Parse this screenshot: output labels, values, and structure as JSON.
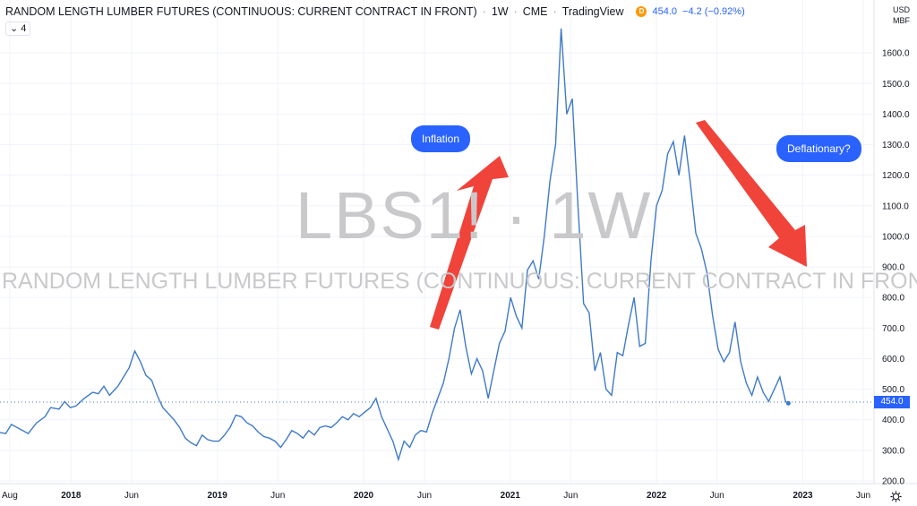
{
  "header": {
    "title": "RANDOM LENGTH LUMBER FUTURES (CONTINUOUS: CURRENT CONTRACT IN FRONT)",
    "interval": "1W",
    "exchange": "CME",
    "source": "TradingView",
    "delayed_badge": "D",
    "last_price": "454.0",
    "change": "−4.2 (−0.92%)"
  },
  "indicator_toggle": "⌄ 4",
  "currency": "USD",
  "unit": "MBF",
  "watermark": {
    "symbol": "LBS1! · 1W",
    "description": "RANDOM LENGTH LUMBER FUTURES (CONTINUOUS: CURRENT CONTRACT IN FRONT)"
  },
  "annotations": {
    "inflation": "Inflation",
    "deflationary": "Deflationary?"
  },
  "price_badge": "454.0",
  "settings_icon": "gear-icon",
  "colors": {
    "line": "#3f7ac9",
    "accent": "#2962ff",
    "arrow": "#f0433a"
  },
  "chart_data": {
    "type": "line",
    "title": "RANDOM LENGTH LUMBER FUTURES (CONTINUOUS: CURRENT CONTRACT IN FRONT)",
    "ylim": [
      200,
      1700
    ],
    "y_ticks": [
      "200.0",
      "300.0",
      "400.0",
      "500.0",
      "600.0",
      "700.0",
      "800.0",
      "900.0",
      "1000.0",
      "1100.0",
      "1200.0",
      "1300.0",
      "1400.0",
      "1500.0",
      "1600.0"
    ],
    "xlim": [
      "2017-07-01",
      "2023-06-30"
    ],
    "x_ticks": [
      {
        "label": "Aug",
        "date": "2017-08-01"
      },
      {
        "label": "2018",
        "date": "2018-01-01"
      },
      {
        "label": "Jun",
        "date": "2018-06-01"
      },
      {
        "label": "2019",
        "date": "2019-01-01"
      },
      {
        "label": "Jun",
        "date": "2019-06-01"
      },
      {
        "label": "2020",
        "date": "2020-01-01"
      },
      {
        "label": "Jun",
        "date": "2020-06-01"
      },
      {
        "label": "2021",
        "date": "2021-01-01"
      },
      {
        "label": "Jun",
        "date": "2021-06-01"
      },
      {
        "label": "2022",
        "date": "2022-01-01"
      },
      {
        "label": "Jun",
        "date": "2022-06-01"
      },
      {
        "label": "2023",
        "date": "2023-01-01"
      },
      {
        "label": "Jun",
        "date": "2023-06-01"
      }
    ],
    "last_value": 454.0,
    "series": [
      {
        "points": [
          [
            "2017-07-01",
            360
          ],
          [
            "2017-07-22",
            355
          ],
          [
            "2017-08-05",
            385
          ],
          [
            "2017-08-26",
            370
          ],
          [
            "2017-09-16",
            355
          ],
          [
            "2017-10-07",
            390
          ],
          [
            "2017-10-28",
            410
          ],
          [
            "2017-11-11",
            440
          ],
          [
            "2017-12-02",
            435
          ],
          [
            "2017-12-16",
            460
          ],
          [
            "2017-12-30",
            440
          ],
          [
            "2018-01-13",
            445
          ],
          [
            "2018-02-03",
            470
          ],
          [
            "2018-02-24",
            490
          ],
          [
            "2018-03-10",
            485
          ],
          [
            "2018-03-24",
            510
          ],
          [
            "2018-04-07",
            480
          ],
          [
            "2018-04-28",
            510
          ],
          [
            "2018-05-12",
            540
          ],
          [
            "2018-05-26",
            570
          ],
          [
            "2018-06-09",
            625
          ],
          [
            "2018-06-23",
            590
          ],
          [
            "2018-07-07",
            545
          ],
          [
            "2018-07-21",
            530
          ],
          [
            "2018-08-04",
            480
          ],
          [
            "2018-08-18",
            440
          ],
          [
            "2018-09-01",
            420
          ],
          [
            "2018-09-15",
            400
          ],
          [
            "2018-09-29",
            375
          ],
          [
            "2018-10-13",
            340
          ],
          [
            "2018-10-27",
            325
          ],
          [
            "2018-11-10",
            315
          ],
          [
            "2018-11-24",
            350
          ],
          [
            "2018-12-08",
            335
          ],
          [
            "2018-12-22",
            330
          ],
          [
            "2019-01-05",
            330
          ],
          [
            "2019-01-19",
            350
          ],
          [
            "2019-02-02",
            375
          ],
          [
            "2019-02-16",
            415
          ],
          [
            "2019-03-02",
            410
          ],
          [
            "2019-03-16",
            390
          ],
          [
            "2019-03-30",
            380
          ],
          [
            "2019-04-13",
            360
          ],
          [
            "2019-04-27",
            345
          ],
          [
            "2019-05-11",
            340
          ],
          [
            "2019-05-25",
            330
          ],
          [
            "2019-06-08",
            310
          ],
          [
            "2019-06-22",
            335
          ],
          [
            "2019-07-06",
            365
          ],
          [
            "2019-07-20",
            355
          ],
          [
            "2019-08-03",
            340
          ],
          [
            "2019-08-17",
            365
          ],
          [
            "2019-08-31",
            350
          ],
          [
            "2019-09-14",
            375
          ],
          [
            "2019-09-28",
            380
          ],
          [
            "2019-10-12",
            375
          ],
          [
            "2019-10-26",
            390
          ],
          [
            "2019-11-09",
            410
          ],
          [
            "2019-11-23",
            400
          ],
          [
            "2019-12-07",
            420
          ],
          [
            "2019-12-21",
            410
          ],
          [
            "2020-01-04",
            425
          ],
          [
            "2020-01-18",
            440
          ],
          [
            "2020-02-01",
            470
          ],
          [
            "2020-02-15",
            410
          ],
          [
            "2020-02-29",
            370
          ],
          [
            "2020-03-14",
            330
          ],
          [
            "2020-03-28",
            270
          ],
          [
            "2020-04-11",
            330
          ],
          [
            "2020-04-25",
            310
          ],
          [
            "2020-05-09",
            350
          ],
          [
            "2020-05-23",
            365
          ],
          [
            "2020-06-06",
            360
          ],
          [
            "2020-06-20",
            420
          ],
          [
            "2020-07-04",
            470
          ],
          [
            "2020-07-18",
            520
          ],
          [
            "2020-08-01",
            600
          ],
          [
            "2020-08-15",
            700
          ],
          [
            "2020-08-29",
            760
          ],
          [
            "2020-09-12",
            640
          ],
          [
            "2020-09-26",
            550
          ],
          [
            "2020-10-10",
            600
          ],
          [
            "2020-10-24",
            560
          ],
          [
            "2020-11-07",
            470
          ],
          [
            "2020-11-21",
            560
          ],
          [
            "2020-12-05",
            650
          ],
          [
            "2020-12-19",
            690
          ],
          [
            "2021-01-02",
            800
          ],
          [
            "2021-01-16",
            740
          ],
          [
            "2021-01-30",
            700
          ],
          [
            "2021-02-13",
            890
          ],
          [
            "2021-02-27",
            920
          ],
          [
            "2021-03-13",
            860
          ],
          [
            "2021-03-27",
            1000
          ],
          [
            "2021-04-10",
            1180
          ],
          [
            "2021-04-24",
            1300
          ],
          [
            "2021-05-08",
            1680
          ],
          [
            "2021-05-22",
            1400
          ],
          [
            "2021-06-05",
            1450
          ],
          [
            "2021-06-19",
            1100
          ],
          [
            "2021-07-03",
            780
          ],
          [
            "2021-07-17",
            750
          ],
          [
            "2021-07-31",
            560
          ],
          [
            "2021-08-14",
            620
          ],
          [
            "2021-08-28",
            500
          ],
          [
            "2021-09-11",
            480
          ],
          [
            "2021-09-25",
            620
          ],
          [
            "2021-10-09",
            610
          ],
          [
            "2021-10-23",
            710
          ],
          [
            "2021-11-06",
            800
          ],
          [
            "2021-11-20",
            640
          ],
          [
            "2021-12-04",
            650
          ],
          [
            "2021-12-18",
            920
          ],
          [
            "2022-01-01",
            1100
          ],
          [
            "2022-01-15",
            1150
          ],
          [
            "2022-01-29",
            1270
          ],
          [
            "2022-02-12",
            1310
          ],
          [
            "2022-02-26",
            1200
          ],
          [
            "2022-03-12",
            1330
          ],
          [
            "2022-03-26",
            1180
          ],
          [
            "2022-04-09",
            1010
          ],
          [
            "2022-04-23",
            960
          ],
          [
            "2022-05-07",
            880
          ],
          [
            "2022-05-21",
            740
          ],
          [
            "2022-06-04",
            630
          ],
          [
            "2022-06-18",
            590
          ],
          [
            "2022-07-02",
            620
          ],
          [
            "2022-07-16",
            720
          ],
          [
            "2022-07-30",
            590
          ],
          [
            "2022-08-13",
            520
          ],
          [
            "2022-08-27",
            480
          ],
          [
            "2022-09-10",
            540
          ],
          [
            "2022-09-24",
            490
          ],
          [
            "2022-10-08",
            460
          ],
          [
            "2022-10-22",
            500
          ],
          [
            "2022-11-05",
            540
          ],
          [
            "2022-11-19",
            460
          ],
          [
            "2022-11-26",
            454
          ]
        ]
      }
    ]
  }
}
